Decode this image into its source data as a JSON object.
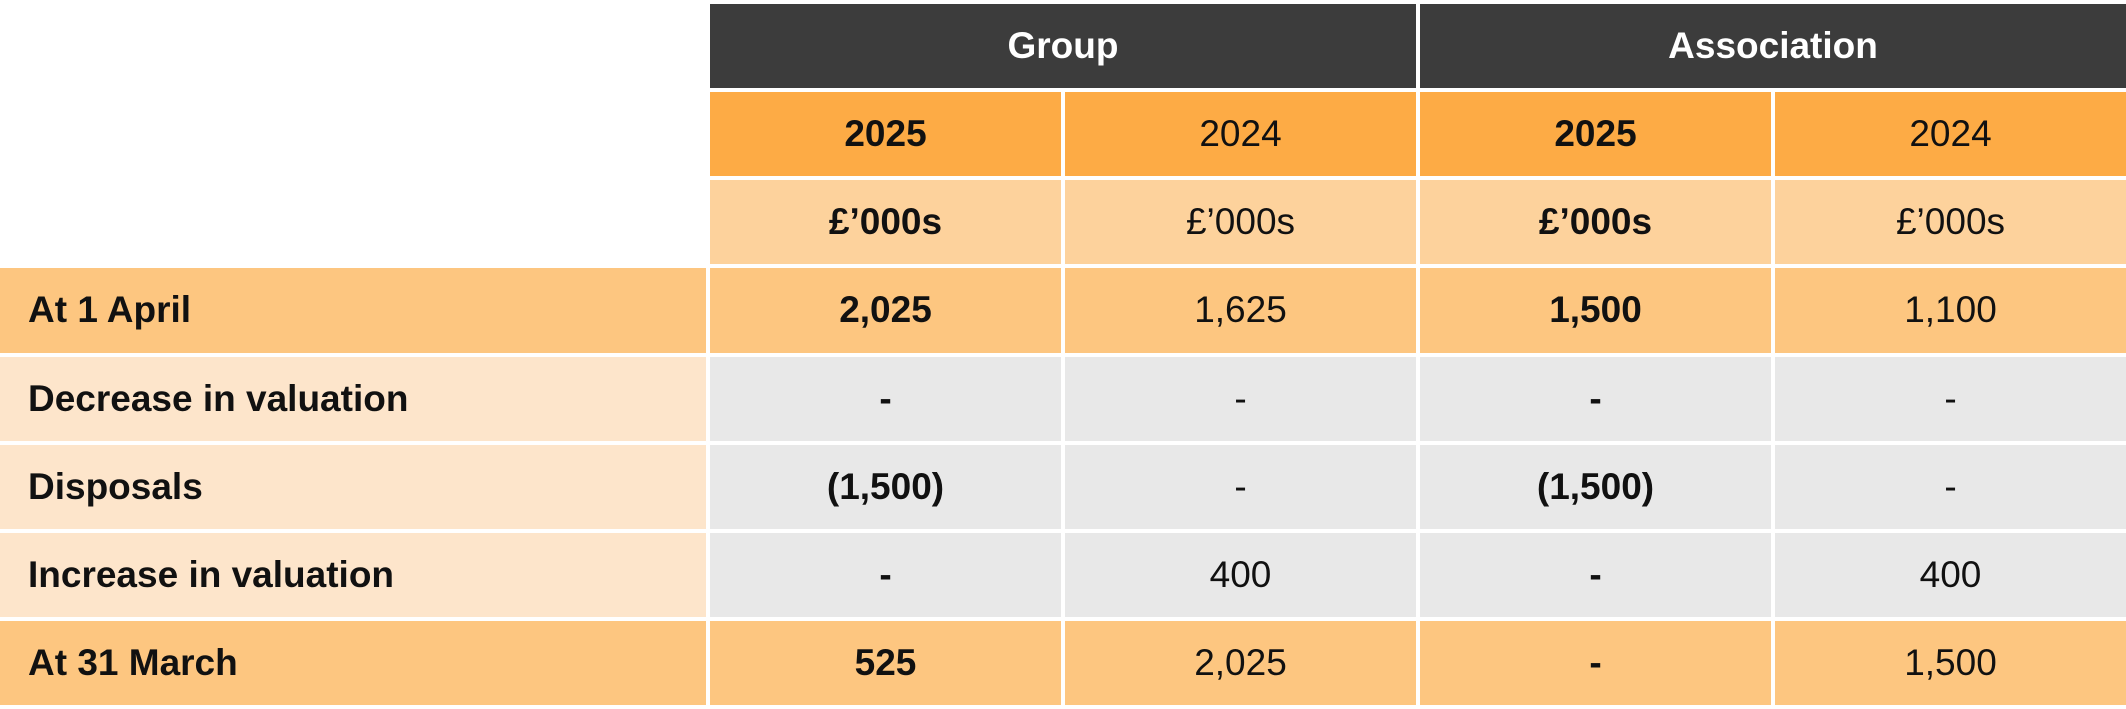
{
  "header": {
    "groups": [
      "Group",
      "Association"
    ],
    "years": [
      "2025",
      "2024",
      "2025",
      "2024"
    ],
    "units": [
      "£’000s",
      "£’000s",
      "£’000s",
      "£’000s"
    ]
  },
  "rows": [
    {
      "label": "At 1 April",
      "values": [
        "2,025",
        "1,625",
        "1,500",
        "1,100"
      ]
    },
    {
      "label": "Decrease in valuation",
      "values": [
        "-",
        "-",
        "-",
        "-"
      ]
    },
    {
      "label": "Disposals",
      "values": [
        "(1,500)",
        "-",
        "(1,500)",
        "-"
      ]
    },
    {
      "label": "Increase in valuation",
      "values": [
        "-",
        "400",
        "-",
        "400"
      ]
    },
    {
      "label": "At 31 March",
      "values": [
        "525",
        "2,025",
        "-",
        "1,500"
      ]
    }
  ]
}
